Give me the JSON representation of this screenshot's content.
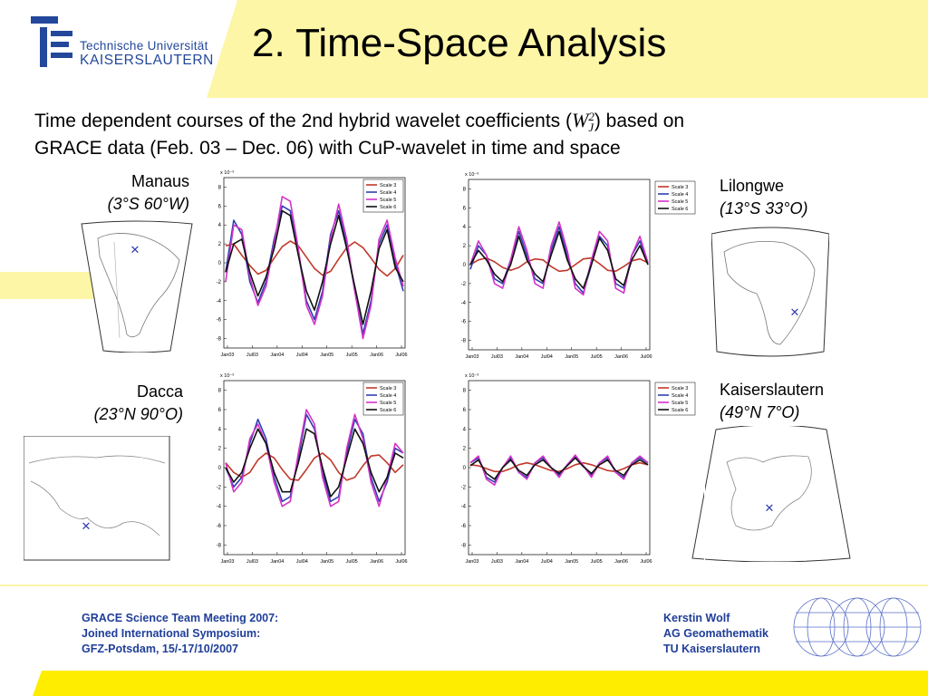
{
  "header": {
    "logo_line1": "Technische Universität",
    "logo_line2": "KAISERSLAUTERN",
    "title": "2. Time-Space Analysis"
  },
  "subtitle": {
    "line1_before": "Time dependent courses of the 2nd hybrid wavelet coefficients (",
    "line1_after": ") based on",
    "line2": "GRACE data (Feb. 03 – Dec. 06) with CuP-wavelet in time and space",
    "symbol_main": "W",
    "symbol_sup": "2",
    "symbol_sub": "J"
  },
  "locations": [
    {
      "name": "Manaus",
      "coords": "(3°S 60°W)"
    },
    {
      "name": "Lilongwe",
      "coords": "(13°S 33°O)"
    },
    {
      "name": "Dacca",
      "coords": "(23°N 90°O)"
    },
    {
      "name": "Kaiserslautern",
      "coords": "(49°N 7°O)"
    }
  ],
  "chart_data": [
    {
      "type": "line",
      "location": "Manaus",
      "y_multiplier": "x 10⁻³",
      "xticks": [
        "Jan03",
        "Jul03",
        "Jan04",
        "Jul04",
        "Jan05",
        "Jul05",
        "Jan06",
        "Jul06"
      ],
      "yticks": [
        8,
        6,
        4,
        2,
        0,
        -2,
        -4,
        -6,
        -8
      ],
      "ylim": [
        -9,
        9
      ],
      "series": [
        {
          "name": "Scale 3",
          "color": "#c0392b",
          "values": [
            1.8,
            2.0,
            0.8,
            -0.3,
            -1.2,
            -0.8,
            0.5,
            1.7,
            2.3,
            1.8,
            0.6,
            -0.6,
            -1.3,
            -0.9,
            0.4,
            1.6,
            2.2,
            1.6,
            0.5,
            -0.7,
            -1.4,
            -0.6,
            0.8
          ]
        },
        {
          "name": "Scale 4",
          "color": "#2f3fb0",
          "values": [
            -1.0,
            4.5,
            3.0,
            -2.0,
            -4.2,
            -2.0,
            2.5,
            6.0,
            5.5,
            1.0,
            -4.0,
            -6.0,
            -3.0,
            3.0,
            5.5,
            2.0,
            -3.0,
            -7.5,
            -4.0,
            2.0,
            4.0,
            0.0,
            -3.0
          ]
        },
        {
          "name": "Scale 5",
          "color": "#d433c8",
          "values": [
            -2.0,
            4.0,
            3.5,
            -1.5,
            -4.5,
            -2.5,
            2.0,
            7.0,
            6.5,
            1.5,
            -4.5,
            -6.5,
            -3.5,
            2.5,
            6.2,
            2.5,
            -3.0,
            -8.0,
            -4.5,
            2.5,
            4.5,
            0.5,
            -2.5
          ]
        },
        {
          "name": "Scale 6",
          "color": "#111111",
          "values": [
            -1.0,
            2.0,
            2.5,
            -1.0,
            -3.5,
            -1.5,
            1.5,
            5.5,
            5.0,
            0.8,
            -3.0,
            -5.0,
            -2.0,
            2.0,
            5.0,
            1.5,
            -2.5,
            -6.5,
            -3.0,
            1.5,
            3.5,
            -0.5,
            -2.0
          ]
        }
      ]
    },
    {
      "type": "line",
      "location": "Lilongwe",
      "y_multiplier": "x 10⁻³",
      "xticks": [
        "Jan03",
        "Jul03",
        "Jan04",
        "Jul04",
        "Jan05",
        "Jul05",
        "Jan06",
        "Jul06"
      ],
      "yticks": [
        8,
        6,
        4,
        2,
        0,
        -2,
        -4,
        -6,
        -8
      ],
      "ylim": [
        -9,
        9
      ],
      "series": [
        {
          "name": "Scale 3",
          "color": "#c0392b",
          "values": [
            0.0,
            0.5,
            0.7,
            0.3,
            -0.3,
            -0.6,
            -0.3,
            0.3,
            0.6,
            0.5,
            -0.2,
            -0.7,
            -0.6,
            0.0,
            0.6,
            0.7,
            0.1,
            -0.6,
            -0.7,
            -0.2,
            0.4,
            0.6,
            0.2
          ]
        },
        {
          "name": "Scale 4",
          "color": "#2f3fb0",
          "values": [
            -0.5,
            2.0,
            1.0,
            -1.5,
            -2.0,
            0.5,
            3.5,
            1.0,
            -1.5,
            -2.0,
            1.5,
            4.0,
            1.0,
            -2.0,
            -3.0,
            0.0,
            3.0,
            2.0,
            -2.0,
            -2.5,
            1.0,
            2.5,
            0.0
          ]
        },
        {
          "name": "Scale 5",
          "color": "#d433c8",
          "values": [
            0.0,
            2.5,
            1.0,
            -2.0,
            -2.5,
            0.5,
            4.0,
            1.5,
            -2.0,
            -2.5,
            2.0,
            4.5,
            1.5,
            -2.5,
            -3.2,
            0.5,
            3.5,
            2.5,
            -2.5,
            -3.0,
            1.0,
            3.0,
            0.2
          ]
        },
        {
          "name": "Scale 6",
          "color": "#111111",
          "values": [
            0.0,
            1.5,
            0.5,
            -1.0,
            -1.8,
            0.0,
            3.0,
            0.5,
            -1.0,
            -1.8,
            1.0,
            3.5,
            0.5,
            -1.5,
            -2.5,
            0.0,
            2.8,
            1.5,
            -1.5,
            -2.2,
            0.5,
            2.0,
            0.0
          ]
        }
      ]
    },
    {
      "type": "line",
      "location": "Dacca",
      "y_multiplier": "x 10⁻³",
      "xticks": [
        "Jan03",
        "Jul03",
        "Jan04",
        "Jul04",
        "Jan05",
        "Jul05",
        "Jan06",
        "Jul06"
      ],
      "yticks": [
        8,
        6,
        4,
        2,
        0,
        -2,
        -4,
        -6,
        -8
      ],
      "ylim": [
        -9,
        9
      ],
      "series": [
        {
          "name": "Scale 3",
          "color": "#c0392b",
          "values": [
            0.5,
            -0.5,
            -1.0,
            -0.5,
            0.8,
            1.5,
            1.0,
            -0.2,
            -1.2,
            -1.3,
            -0.2,
            1.0,
            1.5,
            0.8,
            -0.5,
            -1.3,
            -1.0,
            0.2,
            1.2,
            1.3,
            0.5,
            -0.5,
            0.3
          ]
        },
        {
          "name": "Scale 4",
          "color": "#2f3fb0",
          "values": [
            0.0,
            -2.0,
            -1.0,
            2.5,
            5.0,
            3.0,
            -1.0,
            -3.5,
            -3.0,
            1.0,
            5.5,
            4.0,
            -0.5,
            -3.5,
            -3.0,
            1.5,
            5.0,
            3.5,
            -1.0,
            -3.5,
            -1.5,
            2.0,
            1.5
          ]
        },
        {
          "name": "Scale 5",
          "color": "#d433c8",
          "values": [
            0.5,
            -2.5,
            -1.5,
            3.0,
            4.5,
            2.5,
            -1.5,
            -4.0,
            -3.5,
            1.5,
            6.0,
            4.5,
            -1.0,
            -4.0,
            -3.5,
            2.0,
            5.5,
            3.0,
            -1.5,
            -4.0,
            -1.0,
            2.5,
            1.5
          ]
        },
        {
          "name": "Scale 6",
          "color": "#111111",
          "values": [
            0.0,
            -1.5,
            -0.5,
            2.0,
            4.0,
            2.5,
            -0.5,
            -2.5,
            -2.5,
            0.5,
            4.0,
            3.5,
            0.0,
            -3.0,
            -2.0,
            1.0,
            4.0,
            2.5,
            -0.5,
            -2.5,
            -1.0,
            1.5,
            1.0
          ]
        }
      ]
    },
    {
      "type": "line",
      "location": "Kaiserslautern",
      "y_multiplier": "x 10⁻³",
      "xticks": [
        "Jan03",
        "Jul03",
        "Jan04",
        "Jul04",
        "Jan05",
        "Jul05",
        "Jan06",
        "Jul06"
      ],
      "yticks": [
        8,
        6,
        4,
        2,
        0,
        -2,
        -4,
        -6,
        -8
      ],
      "ylim": [
        -9,
        9
      ],
      "series": [
        {
          "name": "Scale 3",
          "color": "#c0392b",
          "values": [
            0.3,
            0.2,
            -0.1,
            -0.4,
            -0.4,
            -0.1,
            0.3,
            0.5,
            0.3,
            0.0,
            -0.3,
            -0.4,
            -0.1,
            0.3,
            0.5,
            0.3,
            0.0,
            -0.3,
            -0.4,
            -0.1,
            0.3,
            0.5,
            0.3
          ]
        },
        {
          "name": "Scale 4",
          "color": "#2f3fb0",
          "values": [
            0.5,
            1.0,
            -1.0,
            -1.5,
            0.0,
            1.0,
            -0.5,
            -1.0,
            0.5,
            1.0,
            0.0,
            -0.8,
            0.3,
            1.2,
            0.2,
            -0.8,
            0.5,
            1.0,
            -0.5,
            -1.0,
            0.5,
            1.0,
            0.5
          ]
        },
        {
          "name": "Scale 5",
          "color": "#d433c8",
          "values": [
            0.5,
            1.2,
            -1.2,
            -1.8,
            0.0,
            1.2,
            -0.5,
            -1.2,
            0.5,
            1.2,
            0.0,
            -1.0,
            0.3,
            1.3,
            0.2,
            -1.0,
            0.5,
            1.2,
            -0.5,
            -1.2,
            0.5,
            1.2,
            0.5
          ]
        },
        {
          "name": "Scale 6",
          "color": "#111111",
          "values": [
            0.2,
            0.8,
            -0.6,
            -1.2,
            0.0,
            0.8,
            -0.3,
            -0.8,
            0.3,
            0.8,
            0.0,
            -0.6,
            0.2,
            1.0,
            0.1,
            -0.6,
            0.3,
            0.8,
            -0.3,
            -0.8,
            0.3,
            0.8,
            0.3
          ]
        }
      ]
    }
  ],
  "footer": {
    "left": [
      "GRACE Science Team Meeting 2007:",
      "Joined International Symposium:",
      "GFZ-Potsdam, 15/-17/10/2007"
    ],
    "right": [
      "Kerstin Wolf",
      "AG Geomathematik",
      "TU Kaiserslautern"
    ]
  },
  "colors": {
    "yellow": "#fdf6a6",
    "logo_blue": "#23489b",
    "footer_blue": "#1f3e99",
    "map_marker": "#2f3fb0"
  }
}
